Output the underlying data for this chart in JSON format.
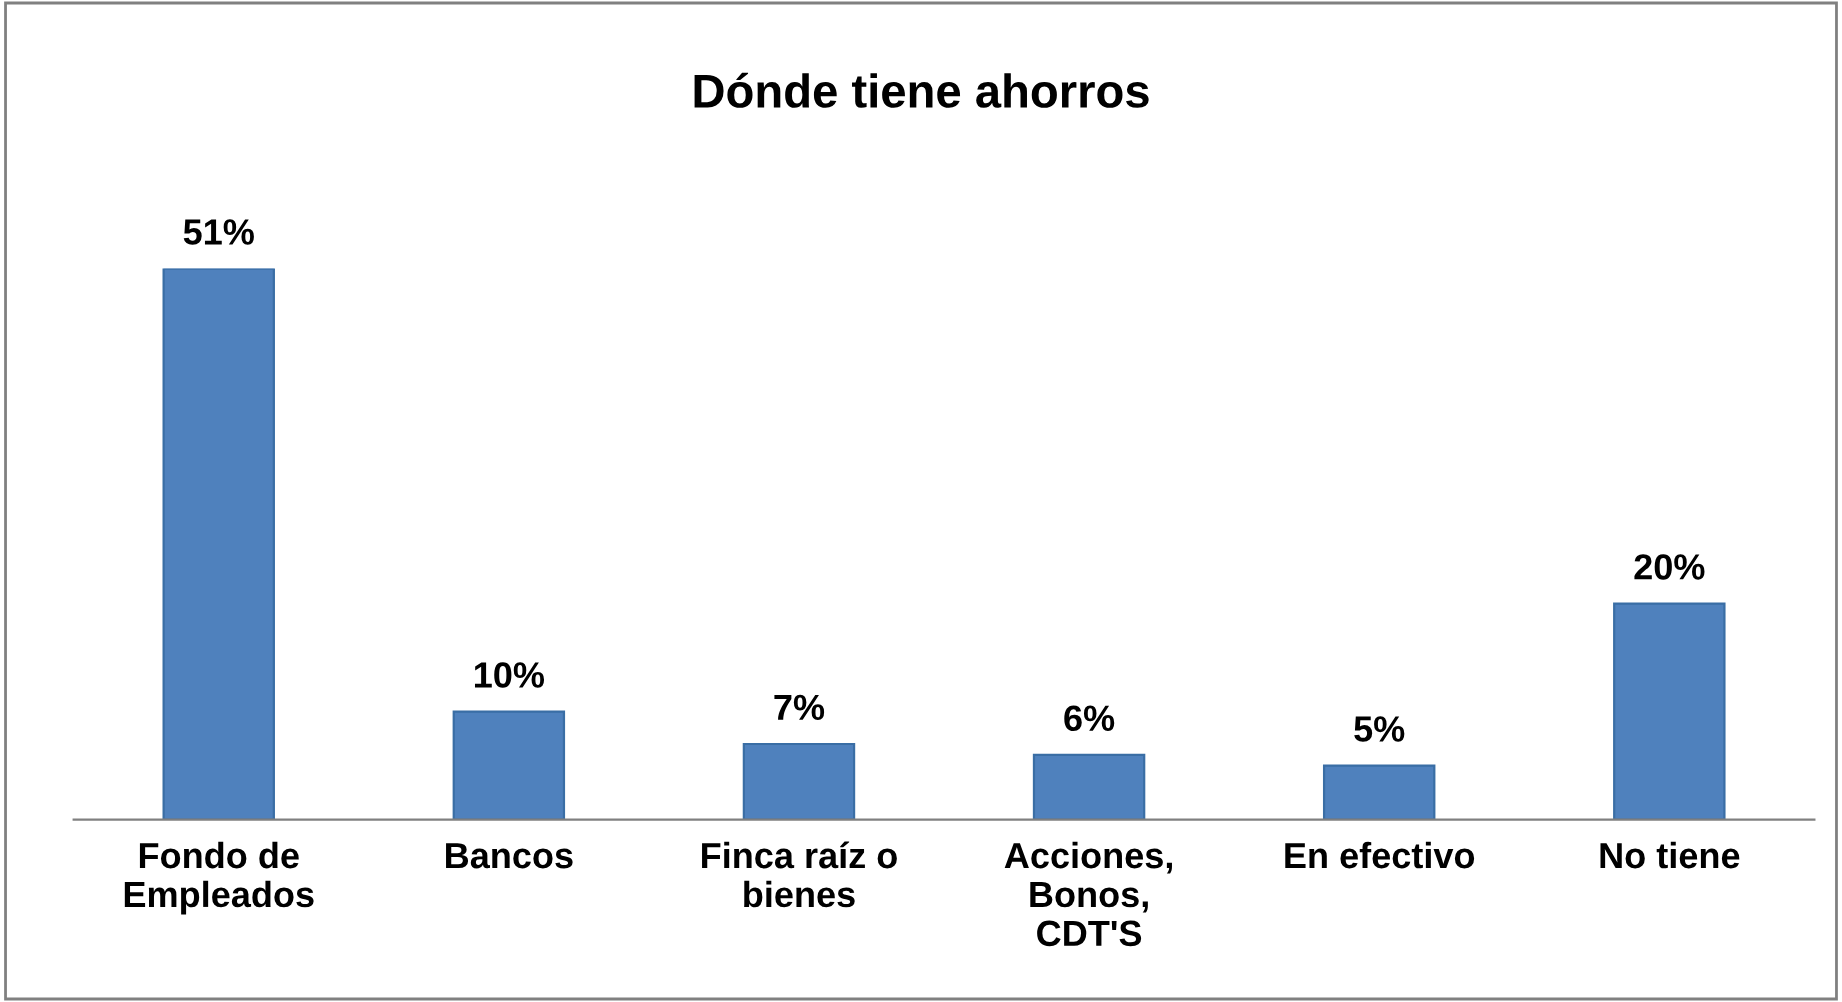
{
  "chart_data": {
    "type": "bar",
    "title": "Dónde tiene ahorros",
    "categories": [
      "Fondo de\nEmpleados",
      "Bancos",
      "Finca raíz o\nbienes",
      "Acciones,\nBonos,\nCDT'S",
      "En efectivo",
      "No tiene"
    ],
    "values": [
      51,
      10,
      7,
      6,
      5,
      20
    ],
    "value_labels": [
      "51%",
      "10%",
      "7%",
      "6%",
      "5%",
      "20%"
    ],
    "color": "#4f81bd"
  }
}
